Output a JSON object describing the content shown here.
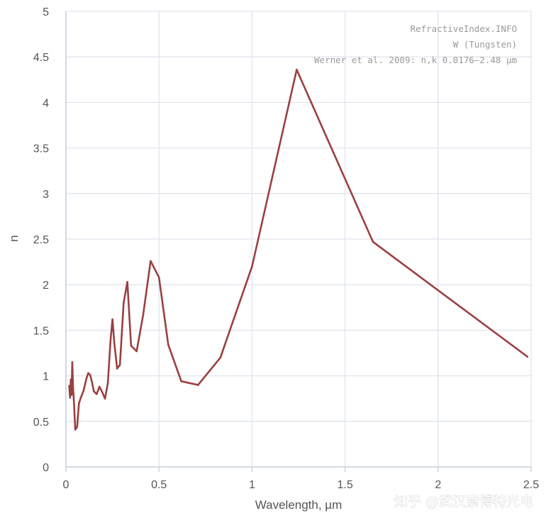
{
  "chart_data": {
    "type": "line",
    "xlabel": "Wavelength, µm",
    "ylabel": "n",
    "xlim": [
      0,
      2.5
    ],
    "ylim": [
      0,
      5
    ],
    "x_ticks": [
      "0",
      "0.5",
      "1",
      "1.5",
      "2",
      "2.5"
    ],
    "y_ticks": [
      "0",
      "0.5",
      "1",
      "1.5",
      "2",
      "2.5",
      "3",
      "3.5",
      "4",
      "4.5",
      "5"
    ],
    "grid": true,
    "annotations": [
      "RefractiveIndex.INFO",
      "W (Tungsten)",
      "Werner et al. 2009: n,k 0.0176–2.48 µm"
    ],
    "series": [
      {
        "color": "#9b4040",
        "x": [
          0.0176,
          0.022,
          0.026,
          0.03,
          0.034,
          0.038,
          0.042,
          0.05,
          0.06,
          0.07,
          0.08,
          0.095,
          0.11,
          0.12,
          0.13,
          0.14,
          0.15,
          0.165,
          0.18,
          0.195,
          0.21,
          0.225,
          0.24,
          0.25,
          0.26,
          0.275,
          0.29,
          0.31,
          0.33,
          0.35,
          0.38,
          0.415,
          0.455,
          0.5,
          0.55,
          0.62,
          0.71,
          0.83,
          1.0,
          1.24,
          1.65,
          2.48
        ],
        "y": [
          0.89,
          0.76,
          0.96,
          0.79,
          1.15,
          0.88,
          0.75,
          0.41,
          0.44,
          0.7,
          0.76,
          0.84,
          0.97,
          1.03,
          1.01,
          0.93,
          0.83,
          0.8,
          0.88,
          0.82,
          0.75,
          0.92,
          1.4,
          1.62,
          1.36,
          1.08,
          1.12,
          1.8,
          2.03,
          1.33,
          1.27,
          1.67,
          2.26,
          2.08,
          1.34,
          0.94,
          0.9,
          1.2,
          2.2,
          4.36,
          2.47,
          1.21
        ]
      }
    ]
  },
  "watermark": "知乎 @武汉索博特光电"
}
